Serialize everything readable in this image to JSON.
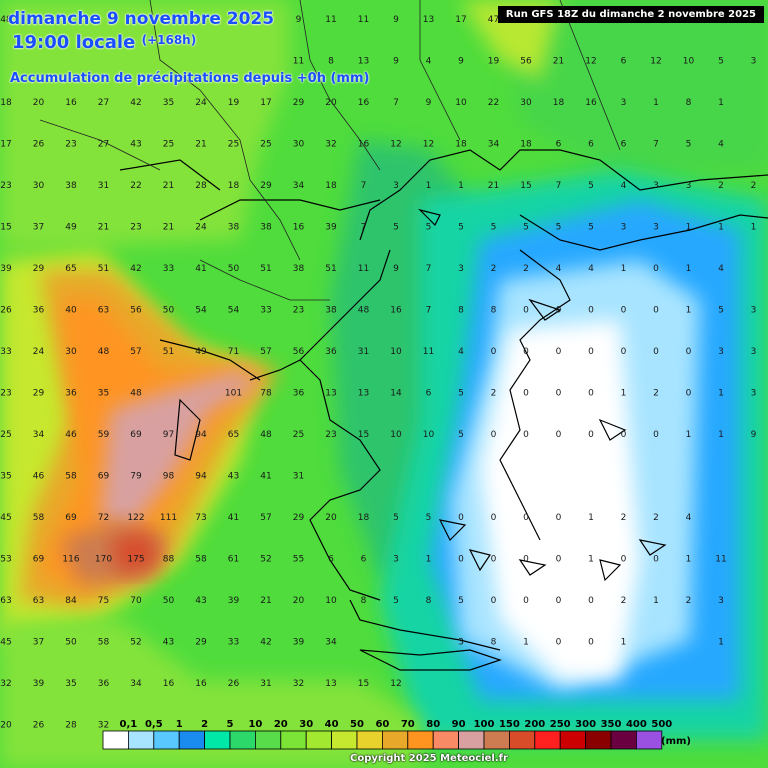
{
  "header": {
    "date_line": "dimanche 9 novembre 2025",
    "time_line": "19:00 locale",
    "time_offset": "(+168h)",
    "variable": "Accumulation de précipitations depuis +0h (mm)",
    "run": "Run GFS 18Z du dimanche 2 novembre 2025"
  },
  "legend": {
    "labels": [
      "0,1",
      "0,5",
      "1",
      "2",
      "5",
      "10",
      "20",
      "30",
      "40",
      "50",
      "60",
      "70",
      "80",
      "90",
      "100",
      "150",
      "200",
      "250",
      "300",
      "350",
      "400",
      "500"
    ],
    "colors": [
      "#ffffff",
      "#a8e4ff",
      "#58c8ff",
      "#1a8cf0",
      "#00e8a8",
      "#2cd86a",
      "#58dc4a",
      "#7ce436",
      "#a2e830",
      "#c6e82e",
      "#ead22c",
      "#e8a82a",
      "#ff9420",
      "#f88a66",
      "#d8a0a0",
      "#cc7c50",
      "#d84c2a",
      "#ff2020",
      "#cc0000",
      "#8a0000",
      "#6a0040",
      "#9a50e0"
    ],
    "unit": "(mm)"
  },
  "copyright": "Copyright 2025 Meteociel.fr",
  "map": {
    "grid_rows": [
      [
        "48",
        "",
        "",
        "",
        "",
        "",
        "",
        "",
        "",
        "9",
        "11",
        "11",
        "9",
        "13",
        "17",
        "47",
        "",
        "",
        "",
        "",
        "",
        "",
        "",
        "",
        "",
        ""
      ],
      [
        "",
        "",
        "",
        "",
        "",
        "",
        "",
        "",
        "",
        "11",
        "8",
        "13",
        "9",
        "4",
        "9",
        "19",
        "56",
        "21",
        "12",
        "6",
        "12",
        "10",
        "5",
        "3",
        "1",
        ""
      ],
      [
        "18",
        "20",
        "16",
        "27",
        "42",
        "35",
        "24",
        "19",
        "17",
        "29",
        "20",
        "16",
        "7",
        "9",
        "10",
        "22",
        "30",
        "18",
        "16",
        "3",
        "1",
        "8",
        "1",
        "",
        ""
      ],
      [
        "17",
        "26",
        "23",
        "27",
        "43",
        "25",
        "21",
        "25",
        "25",
        "30",
        "32",
        "16",
        "12",
        "12",
        "18",
        "34",
        "18",
        "6",
        "6",
        "6",
        "7",
        "5",
        "4",
        "",
        ""
      ],
      [
        "23",
        "30",
        "38",
        "31",
        "22",
        "21",
        "28",
        "18",
        "29",
        "34",
        "18",
        "7",
        "3",
        "1",
        "1",
        "21",
        "15",
        "7",
        "5",
        "4",
        "3",
        "3",
        "2",
        "2",
        ""
      ],
      [
        "15",
        "37",
        "49",
        "21",
        "23",
        "21",
        "24",
        "38",
        "38",
        "16",
        "39",
        "7",
        "5",
        "5",
        "5",
        "5",
        "5",
        "5",
        "5",
        "3",
        "3",
        "1",
        "1",
        "1",
        ""
      ],
      [
        "39",
        "29",
        "65",
        "51",
        "42",
        "33",
        "41",
        "50",
        "51",
        "38",
        "51",
        "11",
        "9",
        "7",
        "3",
        "2",
        "2",
        "4",
        "4",
        "1",
        "0",
        "1",
        "4",
        "",
        ""
      ],
      [
        "26",
        "36",
        "40",
        "63",
        "56",
        "50",
        "54",
        "54",
        "33",
        "23",
        "38",
        "48",
        "16",
        "7",
        "8",
        "8",
        "0",
        "0",
        "0",
        "0",
        "0",
        "1",
        "5",
        "3",
        ""
      ],
      [
        "33",
        "24",
        "30",
        "48",
        "57",
        "51",
        "49",
        "71",
        "57",
        "56",
        "36",
        "31",
        "10",
        "11",
        "4",
        "0",
        "0",
        "0",
        "0",
        "0",
        "0",
        "0",
        "3",
        "3",
        ""
      ],
      [
        "23",
        "29",
        "36",
        "35",
        "48",
        "",
        "",
        "101",
        "78",
        "36",
        "13",
        "13",
        "14",
        "6",
        "5",
        "2",
        "0",
        "0",
        "0",
        "1",
        "2",
        "0",
        "1",
        "3",
        ""
      ],
      [
        "25",
        "34",
        "46",
        "59",
        "69",
        "97",
        "94",
        "65",
        "48",
        "25",
        "23",
        "15",
        "10",
        "10",
        "5",
        "0",
        "0",
        "0",
        "0",
        "0",
        "0",
        "1",
        "1",
        "9",
        ""
      ],
      [
        "35",
        "46",
        "58",
        "69",
        "79",
        "98",
        "94",
        "43",
        "41",
        "31",
        "",
        "",
        "",
        "",
        "",
        "",
        "",
        "",
        "",
        "",
        "",
        "",
        "",
        "",
        ""
      ],
      [
        "45",
        "58",
        "69",
        "72",
        "122",
        "111",
        "73",
        "41",
        "57",
        "29",
        "20",
        "18",
        "5",
        "5",
        "0",
        "0",
        "0",
        "0",
        "1",
        "2",
        "2",
        "4",
        "",
        ""
      ],
      [
        "53",
        "69",
        "116",
        "170",
        "175",
        "88",
        "58",
        "61",
        "52",
        "55",
        "6",
        "6",
        "3",
        "1",
        "0",
        "0",
        "0",
        "0",
        "1",
        "0",
        "0",
        "1",
        "11",
        ""
      ],
      [
        "63",
        "63",
        "84",
        "75",
        "70",
        "50",
        "43",
        "39",
        "21",
        "20",
        "10",
        "8",
        "5",
        "8",
        "5",
        "0",
        "0",
        "0",
        "0",
        "2",
        "1",
        "2",
        "3",
        ""
      ],
      [
        "45",
        "37",
        "50",
        "58",
        "52",
        "43",
        "29",
        "33",
        "42",
        "39",
        "34",
        "",
        "",
        "",
        "3",
        "8",
        "1",
        "0",
        "0",
        "1",
        "",
        "",
        "1",
        ""
      ],
      [
        "32",
        "39",
        "35",
        "36",
        "34",
        "16",
        "16",
        "26",
        "31",
        "32",
        "13",
        "15",
        "12",
        "",
        "",
        "",
        "",
        "",
        "",
        "",
        "",
        "",
        "",
        "",
        ""
      ],
      [
        "20",
        "26",
        "28",
        "32",
        "",
        "",
        "",
        "",
        "",
        "",
        "",
        "",
        "",
        "",
        "",
        "",
        "",
        "",
        "",
        "",
        "",
        "",
        "",
        "",
        ""
      ]
    ]
  }
}
